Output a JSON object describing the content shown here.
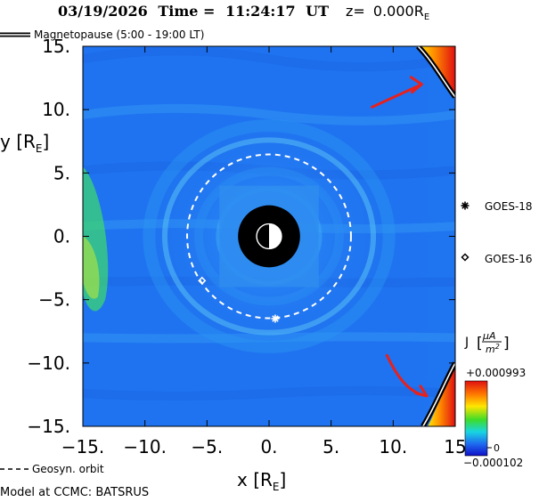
{
  "header": {
    "date": "03/19/2026",
    "time_label": "Time =",
    "time": "11:24:17",
    "time_unit": "UT",
    "z_label": "z=",
    "z_value": "0.000",
    "z_unit": "R",
    "z_unit_sub": "E"
  },
  "legend": {
    "magnetopause": "Magnetopause (5:00 - 19:00 LT)",
    "geosync": "Geosyn. orbit",
    "goes18": "GOES-18",
    "goes16": "GOES-16"
  },
  "footer": {
    "model": "Model at CCMC: BATSRUS"
  },
  "colorbar": {
    "title_symbol": "J",
    "unit_num": "μA",
    "unit_den": "m",
    "unit_den_sup": "2",
    "max_label": "+0.000993",
    "zero_label": "0",
    "min_label": "−0.000102",
    "max": 0.000993,
    "min": -0.000102
  },
  "colors": {
    "background_field": "#1f73f0",
    "annotation_arrow": "#e8201c",
    "earth": "#000000"
  },
  "chart_data": {
    "type": "heatmap",
    "quantity": "current density J",
    "xlabel": "x [R",
    "xlabel_sub": "E",
    "xlabel_close": "]",
    "ylabel": "y [R",
    "ylabel_sub": "E",
    "ylabel_close": "]",
    "xlim": [
      -15,
      15
    ],
    "ylim": [
      -15,
      15
    ],
    "x_ticks": [
      -15,
      -10,
      -5,
      0,
      5,
      10,
      15
    ],
    "x_tick_labels": [
      "−15.",
      "−10.",
      "−5.",
      "0.",
      "5.",
      "10.",
      "15"
    ],
    "y_ticks": [
      15,
      10,
      5,
      0,
      -5,
      -10,
      -15
    ],
    "y_tick_labels": [
      "15.",
      "10.",
      "5.",
      "0.",
      "−5.",
      "−10.",
      "−15."
    ],
    "geosync_radius": 6.6,
    "inner_boundary_radius": 2.5,
    "satellites": [
      {
        "name": "GOES-18",
        "x": 0.5,
        "y": -6.5,
        "marker": "asterisk"
      },
      {
        "name": "GOES-16",
        "x": -5.4,
        "y": -3.5,
        "marker": "diamond"
      }
    ]
  }
}
